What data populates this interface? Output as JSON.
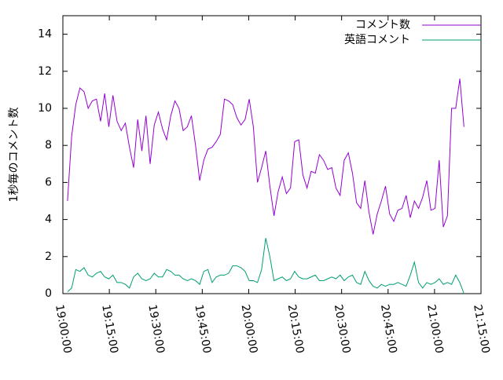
{
  "chart_data": {
    "type": "line",
    "ylabel": "1秒毎のコメント数",
    "xlim": [
      "19:00:00",
      "21:15:00"
    ],
    "xticks": [
      "19:00:00",
      "19:15:00",
      "19:30:00",
      "19:45:00",
      "20:00:00",
      "20:15:00",
      "20:30:00",
      "20:45:00",
      "21:00:00",
      "21:15:00"
    ],
    "ylim": [
      0,
      15
    ],
    "yticks": [
      0,
      2,
      4,
      6,
      8,
      10,
      12,
      14
    ],
    "legend": "top-right",
    "x": [
      "19:01:30",
      "19:02:50",
      "19:04:10",
      "19:05:30",
      "19:06:50",
      "19:08:10",
      "19:09:30",
      "19:10:50",
      "19:12:10",
      "19:13:30",
      "19:14:50",
      "19:16:10",
      "19:17:30",
      "19:18:50",
      "19:20:10",
      "19:21:30",
      "19:22:50",
      "19:24:10",
      "19:25:30",
      "19:26:50",
      "19:28:10",
      "19:29:30",
      "19:30:50",
      "19:32:10",
      "19:33:30",
      "19:34:50",
      "19:36:10",
      "19:37:30",
      "19:38:50",
      "19:40:10",
      "19:41:30",
      "19:42:50",
      "19:44:10",
      "19:45:30",
      "19:46:50",
      "19:48:10",
      "19:49:30",
      "19:50:50",
      "19:52:10",
      "19:53:30",
      "19:54:50",
      "19:56:10",
      "19:57:30",
      "19:58:50",
      "20:00:10",
      "20:01:30",
      "20:02:50",
      "20:04:10",
      "20:05:30",
      "20:06:50",
      "20:08:10",
      "20:09:30",
      "20:10:50",
      "20:12:10",
      "20:13:30",
      "20:14:50",
      "20:16:10",
      "20:17:30",
      "20:18:50",
      "20:20:10",
      "20:21:30",
      "20:22:50",
      "20:24:10",
      "20:25:30",
      "20:26:50",
      "20:28:10",
      "20:29:30",
      "20:30:50",
      "20:32:10",
      "20:33:30",
      "20:34:50",
      "20:36:10",
      "20:37:30",
      "20:38:50",
      "20:40:10",
      "20:41:30",
      "20:42:50",
      "20:44:10",
      "20:45:30",
      "20:46:50",
      "20:48:10",
      "20:49:30",
      "20:50:50",
      "20:52:10",
      "20:53:30",
      "20:54:50",
      "20:56:10",
      "20:57:30",
      "20:58:50",
      "21:00:10",
      "21:01:30",
      "21:02:50",
      "21:04:10",
      "21:05:30",
      "21:06:50",
      "21:08:10",
      "21:09:30"
    ],
    "series": [
      {
        "name": "コメント数",
        "color": "#9400d3",
        "values": [
          5.0,
          8.5,
          10.2,
          11.1,
          10.9,
          10.0,
          10.4,
          10.5,
          9.3,
          10.8,
          9.0,
          10.7,
          9.3,
          8.8,
          9.2,
          7.9,
          6.8,
          9.4,
          7.7,
          9.6,
          7.0,
          9.1,
          9.8,
          8.9,
          8.3,
          9.6,
          10.4,
          10.0,
          8.8,
          9.0,
          9.6,
          8.0,
          6.1,
          7.2,
          7.8,
          7.9,
          8.2,
          8.6,
          10.5,
          10.4,
          10.2,
          9.5,
          9.1,
          9.4,
          10.5,
          9.0,
          6.0,
          6.8,
          7.7,
          5.8,
          4.2,
          5.5,
          6.3,
          5.4,
          5.7,
          8.2,
          8.3,
          6.4,
          5.7,
          6.6,
          6.5,
          7.5,
          7.2,
          6.7,
          6.8,
          5.7,
          5.3,
          7.2,
          7.6,
          6.5,
          4.9,
          4.6,
          6.1,
          4.4,
          3.2,
          4.3,
          5.0,
          5.8,
          4.3,
          3.9,
          4.5,
          4.6,
          5.3,
          4.1,
          5.0,
          4.6,
          5.2,
          6.1,
          4.5,
          4.6,
          7.2,
          3.6,
          4.2,
          10.0,
          10.0,
          11.6,
          9.0
        ]
      },
      {
        "name": "英語コメント",
        "color": "#009e73",
        "values": [
          0.1,
          0.3,
          1.3,
          1.2,
          1.4,
          1.0,
          0.9,
          1.1,
          1.2,
          0.9,
          0.8,
          1.0,
          0.6,
          0.6,
          0.5,
          0.3,
          0.9,
          1.1,
          0.8,
          0.7,
          0.8,
          1.1,
          0.9,
          0.9,
          1.3,
          1.2,
          1.0,
          1.0,
          0.8,
          0.7,
          0.8,
          0.7,
          0.5,
          1.2,
          1.3,
          0.6,
          0.9,
          1.0,
          1.0,
          1.1,
          1.5,
          1.5,
          1.4,
          1.2,
          0.7,
          0.7,
          0.6,
          1.3,
          3.0,
          2.0,
          0.7,
          0.8,
          0.9,
          0.7,
          0.8,
          1.2,
          0.9,
          0.8,
          0.8,
          0.9,
          1.0,
          0.7,
          0.7,
          0.8,
          0.9,
          0.8,
          1.0,
          0.7,
          0.9,
          1.0,
          0.6,
          0.5,
          1.2,
          0.7,
          0.4,
          0.3,
          0.5,
          0.4,
          0.5,
          0.5,
          0.6,
          0.5,
          0.4,
          1.0,
          1.7,
          0.6,
          0.3,
          0.6,
          0.5,
          0.6,
          0.8,
          0.5,
          0.6,
          0.5,
          1.0,
          0.6,
          0.0
        ]
      }
    ]
  }
}
